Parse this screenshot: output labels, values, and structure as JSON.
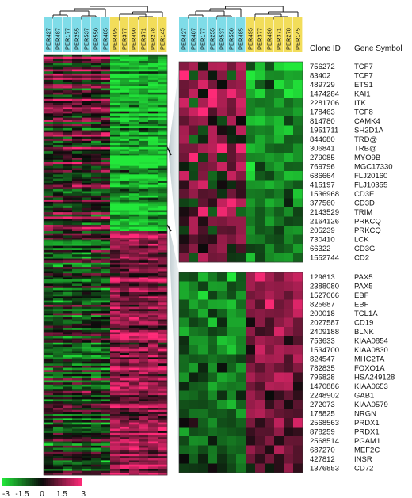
{
  "colors": {
    "neg": "#22e83a",
    "pos": "#ff2a78",
    "mid": "#0a0a0a",
    "cyan": "#7fdce8",
    "yellow": "#f2dd5a"
  },
  "samples_left": [
    "PER427",
    "PER487",
    "PER177",
    "PER255",
    "PER537",
    "PER550",
    "PER485",
    "PER495",
    "PER377",
    "PER490",
    "PER371",
    "PER278",
    "PER145"
  ],
  "samples_right": [
    "PER427",
    "PER487",
    "PER177",
    "PER255",
    "PER537",
    "PER550",
    "PER485",
    "PER495",
    "PER377",
    "PER490",
    "PER371",
    "PER278",
    "PER145"
  ],
  "sample_groups": [
    "cyan",
    "cyan",
    "cyan",
    "cyan",
    "cyan",
    "cyan",
    "cyan",
    "yellow",
    "yellow",
    "yellow",
    "yellow",
    "yellow",
    "yellow"
  ],
  "headers": {
    "clone_id": "Clone ID",
    "gene_symbol": "Gene Symbol"
  },
  "top_genes": [
    {
      "clone": "756272",
      "gene": "TCF7"
    },
    {
      "clone": "83402",
      "gene": "TCF7"
    },
    {
      "clone": "489729",
      "gene": "ETS1"
    },
    {
      "clone": "1474284",
      "gene": "KAI1"
    },
    {
      "clone": "2281706",
      "gene": "ITK"
    },
    {
      "clone": "178463",
      "gene": "TCF8"
    },
    {
      "clone": "814780",
      "gene": "CAMK4"
    },
    {
      "clone": "1951711",
      "gene": "SH2D1A"
    },
    {
      "clone": "844680",
      "gene": "TRD@"
    },
    {
      "clone": "306841",
      "gene": "TRB@"
    },
    {
      "clone": "279085",
      "gene": "MYO9B"
    },
    {
      "clone": "769796",
      "gene": "MGC17330"
    },
    {
      "clone": "686664",
      "gene": "FLJ20160"
    },
    {
      "clone": "415197",
      "gene": "FLJ10355"
    },
    {
      "clone": "1536968",
      "gene": "CD3E"
    },
    {
      "clone": "377560",
      "gene": "CD3D"
    },
    {
      "clone": "2143529",
      "gene": "TRIM"
    },
    {
      "clone": "2164126",
      "gene": "PRKCQ"
    },
    {
      "clone": "205239",
      "gene": "PRKCQ"
    },
    {
      "clone": "730410",
      "gene": "LCK"
    },
    {
      "clone": "66322",
      "gene": "CD3G"
    },
    {
      "clone": "1552744",
      "gene": "CD2"
    }
  ],
  "bottom_genes": [
    {
      "clone": "129613",
      "gene": "PAX5"
    },
    {
      "clone": "2388080",
      "gene": "PAX5"
    },
    {
      "clone": "1527066",
      "gene": "EBF"
    },
    {
      "clone": "825687",
      "gene": "EBF"
    },
    {
      "clone": "200018",
      "gene": "TCL1A"
    },
    {
      "clone": "2027587",
      "gene": "CD19"
    },
    {
      "clone": "2409188",
      "gene": "BLNK"
    },
    {
      "clone": "753633",
      "gene": "KIAA0854"
    },
    {
      "clone": "1534700",
      "gene": "KIAA0830"
    },
    {
      "clone": "824547",
      "gene": "MHC2TA"
    },
    {
      "clone": "782835",
      "gene": "FOXO1A"
    },
    {
      "clone": "795828",
      "gene": "HSA249128"
    },
    {
      "clone": "1470886",
      "gene": "KIAA0653"
    },
    {
      "clone": "2248902",
      "gene": "GAB1"
    },
    {
      "clone": "272073",
      "gene": "KIAA0579"
    },
    {
      "clone": "178825",
      "gene": "NRGN"
    },
    {
      "clone": "2568563",
      "gene": "PRDX1"
    },
    {
      "clone": "878259",
      "gene": "PRDX1"
    },
    {
      "clone": "2568514",
      "gene": "PGAM1"
    },
    {
      "clone": "687270",
      "gene": "MEF2C"
    },
    {
      "clone": "427812",
      "gene": "INSR"
    },
    {
      "clone": "1376853",
      "gene": "CD72"
    }
  ],
  "scale": {
    "ticks": [
      "-3",
      "-1.5",
      "0",
      "1.5",
      "3"
    ]
  }
}
